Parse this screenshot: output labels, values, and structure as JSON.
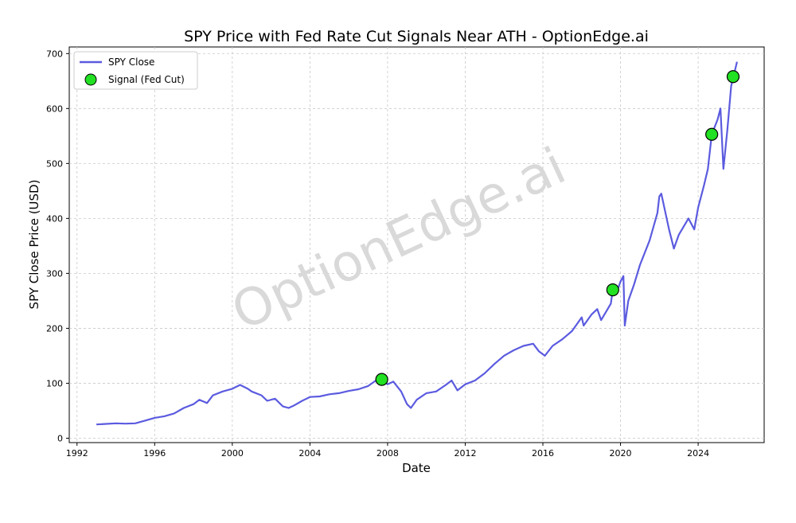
{
  "chart_data": {
    "type": "line",
    "title": "SPY Price with Fed Rate Cut Signals Near ATH - OptionEdge.ai",
    "xlabel": "Date",
    "ylabel": "SPY Close Price (USD)",
    "watermark": "OptionEdge.ai",
    "xlim": [
      1991.6,
      2027.4
    ],
    "ylim": [
      -8,
      712
    ],
    "x_ticks": [
      1992,
      1996,
      2000,
      2004,
      2008,
      2012,
      2016,
      2020,
      2024
    ],
    "x_tick_labels": [
      "1992",
      "1996",
      "2000",
      "2004",
      "2008",
      "2012",
      "2016",
      "2020",
      "2024"
    ],
    "y_ticks": [
      0,
      100,
      200,
      300,
      400,
      500,
      600,
      700
    ],
    "y_tick_labels": [
      "0",
      "100",
      "200",
      "300",
      "400",
      "500",
      "600",
      "700"
    ],
    "grid": true,
    "legend_position": "top-left",
    "legend": [
      {
        "label": "SPY Close",
        "kind": "line",
        "color": "#5b5be0"
      },
      {
        "label": "Signal (Fed Cut)",
        "kind": "marker",
        "color": "#22e022"
      }
    ],
    "series": [
      {
        "name": "SPY Close",
        "color": "#5b5be0",
        "points": [
          [
            1993.0,
            25
          ],
          [
            1993.5,
            26
          ],
          [
            1994.0,
            27
          ],
          [
            1994.5,
            26.5
          ],
          [
            1995.0,
            27
          ],
          [
            1995.5,
            32
          ],
          [
            1996.0,
            37
          ],
          [
            1996.5,
            40
          ],
          [
            1997.0,
            45
          ],
          [
            1997.5,
            55
          ],
          [
            1998.0,
            62
          ],
          [
            1998.3,
            70
          ],
          [
            1998.7,
            64
          ],
          [
            1999.0,
            78
          ],
          [
            1999.5,
            85
          ],
          [
            2000.0,
            90
          ],
          [
            2000.4,
            97
          ],
          [
            2000.8,
            90
          ],
          [
            2001.0,
            85
          ],
          [
            2001.5,
            78
          ],
          [
            2001.8,
            68
          ],
          [
            2002.2,
            72
          ],
          [
            2002.6,
            58
          ],
          [
            2002.9,
            55
          ],
          [
            2003.2,
            60
          ],
          [
            2003.6,
            68
          ],
          [
            2004.0,
            75
          ],
          [
            2004.5,
            76
          ],
          [
            2005.0,
            80
          ],
          [
            2005.5,
            82
          ],
          [
            2006.0,
            86
          ],
          [
            2006.5,
            89
          ],
          [
            2007.0,
            95
          ],
          [
            2007.4,
            105
          ],
          [
            2007.7,
            107
          ],
          [
            2008.0,
            98
          ],
          [
            2008.3,
            103
          ],
          [
            2008.7,
            85
          ],
          [
            2009.0,
            62
          ],
          [
            2009.2,
            55
          ],
          [
            2009.5,
            70
          ],
          [
            2010.0,
            82
          ],
          [
            2010.5,
            85
          ],
          [
            2011.0,
            97
          ],
          [
            2011.3,
            105
          ],
          [
            2011.6,
            87
          ],
          [
            2012.0,
            98
          ],
          [
            2012.5,
            105
          ],
          [
            2013.0,
            118
          ],
          [
            2013.5,
            135
          ],
          [
            2014.0,
            150
          ],
          [
            2014.5,
            160
          ],
          [
            2015.0,
            168
          ],
          [
            2015.5,
            172
          ],
          [
            2015.8,
            158
          ],
          [
            2016.1,
            150
          ],
          [
            2016.5,
            168
          ],
          [
            2017.0,
            180
          ],
          [
            2017.5,
            195
          ],
          [
            2018.0,
            220
          ],
          [
            2018.1,
            205
          ],
          [
            2018.5,
            225
          ],
          [
            2018.8,
            235
          ],
          [
            2019.0,
            215
          ],
          [
            2019.5,
            245
          ],
          [
            2019.6,
            270
          ],
          [
            2019.9,
            275
          ],
          [
            2020.0,
            285
          ],
          [
            2020.15,
            295
          ],
          [
            2020.22,
            205
          ],
          [
            2020.4,
            250
          ],
          [
            2020.7,
            280
          ],
          [
            2021.0,
            315
          ],
          [
            2021.5,
            360
          ],
          [
            2021.9,
            410
          ],
          [
            2022.0,
            440
          ],
          [
            2022.1,
            445
          ],
          [
            2022.5,
            380
          ],
          [
            2022.75,
            345
          ],
          [
            2023.0,
            370
          ],
          [
            2023.5,
            400
          ],
          [
            2023.8,
            380
          ],
          [
            2024.0,
            420
          ],
          [
            2024.3,
            460
          ],
          [
            2024.5,
            490
          ],
          [
            2024.7,
            553
          ],
          [
            2025.0,
            580
          ],
          [
            2025.15,
            600
          ],
          [
            2025.3,
            490
          ],
          [
            2025.5,
            560
          ],
          [
            2025.7,
            640
          ],
          [
            2025.8,
            658
          ],
          [
            2025.9,
            670
          ],
          [
            2026.0,
            685
          ]
        ]
      }
    ],
    "signals": {
      "name": "Signal (Fed Cut)",
      "color": "#22e022",
      "points": [
        [
          2007.7,
          107
        ],
        [
          2019.6,
          270
        ],
        [
          2024.7,
          553
        ],
        [
          2025.8,
          658
        ]
      ]
    }
  }
}
